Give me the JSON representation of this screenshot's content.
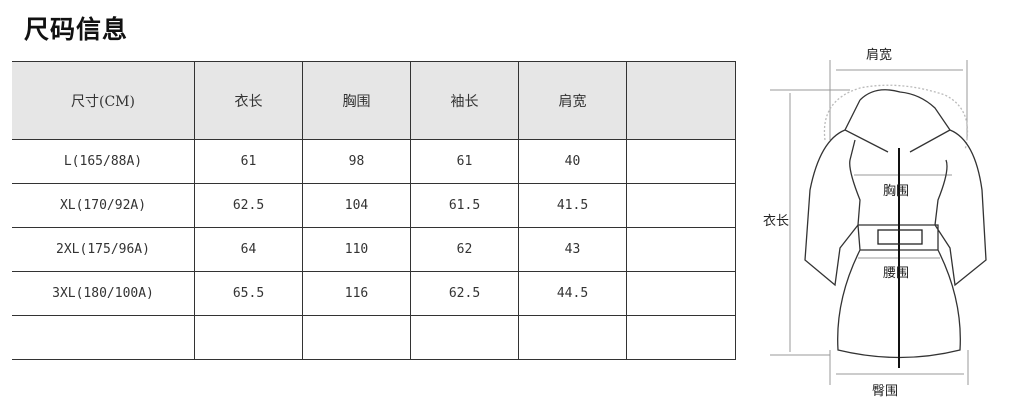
{
  "title": "尺码信息",
  "table": {
    "headers": [
      "尺寸(CM)",
      "衣长",
      "胸围",
      "袖长",
      "肩宽",
      ""
    ],
    "rows": [
      [
        "L(165/88A)",
        "61",
        "98",
        "61",
        "40",
        ""
      ],
      [
        "XL(170/92A)",
        "62.5",
        "104",
        "61.5",
        "41.5",
        ""
      ],
      [
        "2XL(175/96A)",
        "64",
        "110",
        "62",
        "43",
        ""
      ],
      [
        "3XL(180/100A)",
        "65.5",
        "116",
        "62.5",
        "44.5",
        ""
      ],
      [
        "",
        "",
        "",
        "",
        "",
        ""
      ]
    ]
  },
  "diagram": {
    "shoulder": "肩宽",
    "length": "衣长",
    "chest": "胸围",
    "waist": "腰围",
    "hip": "臀围"
  }
}
